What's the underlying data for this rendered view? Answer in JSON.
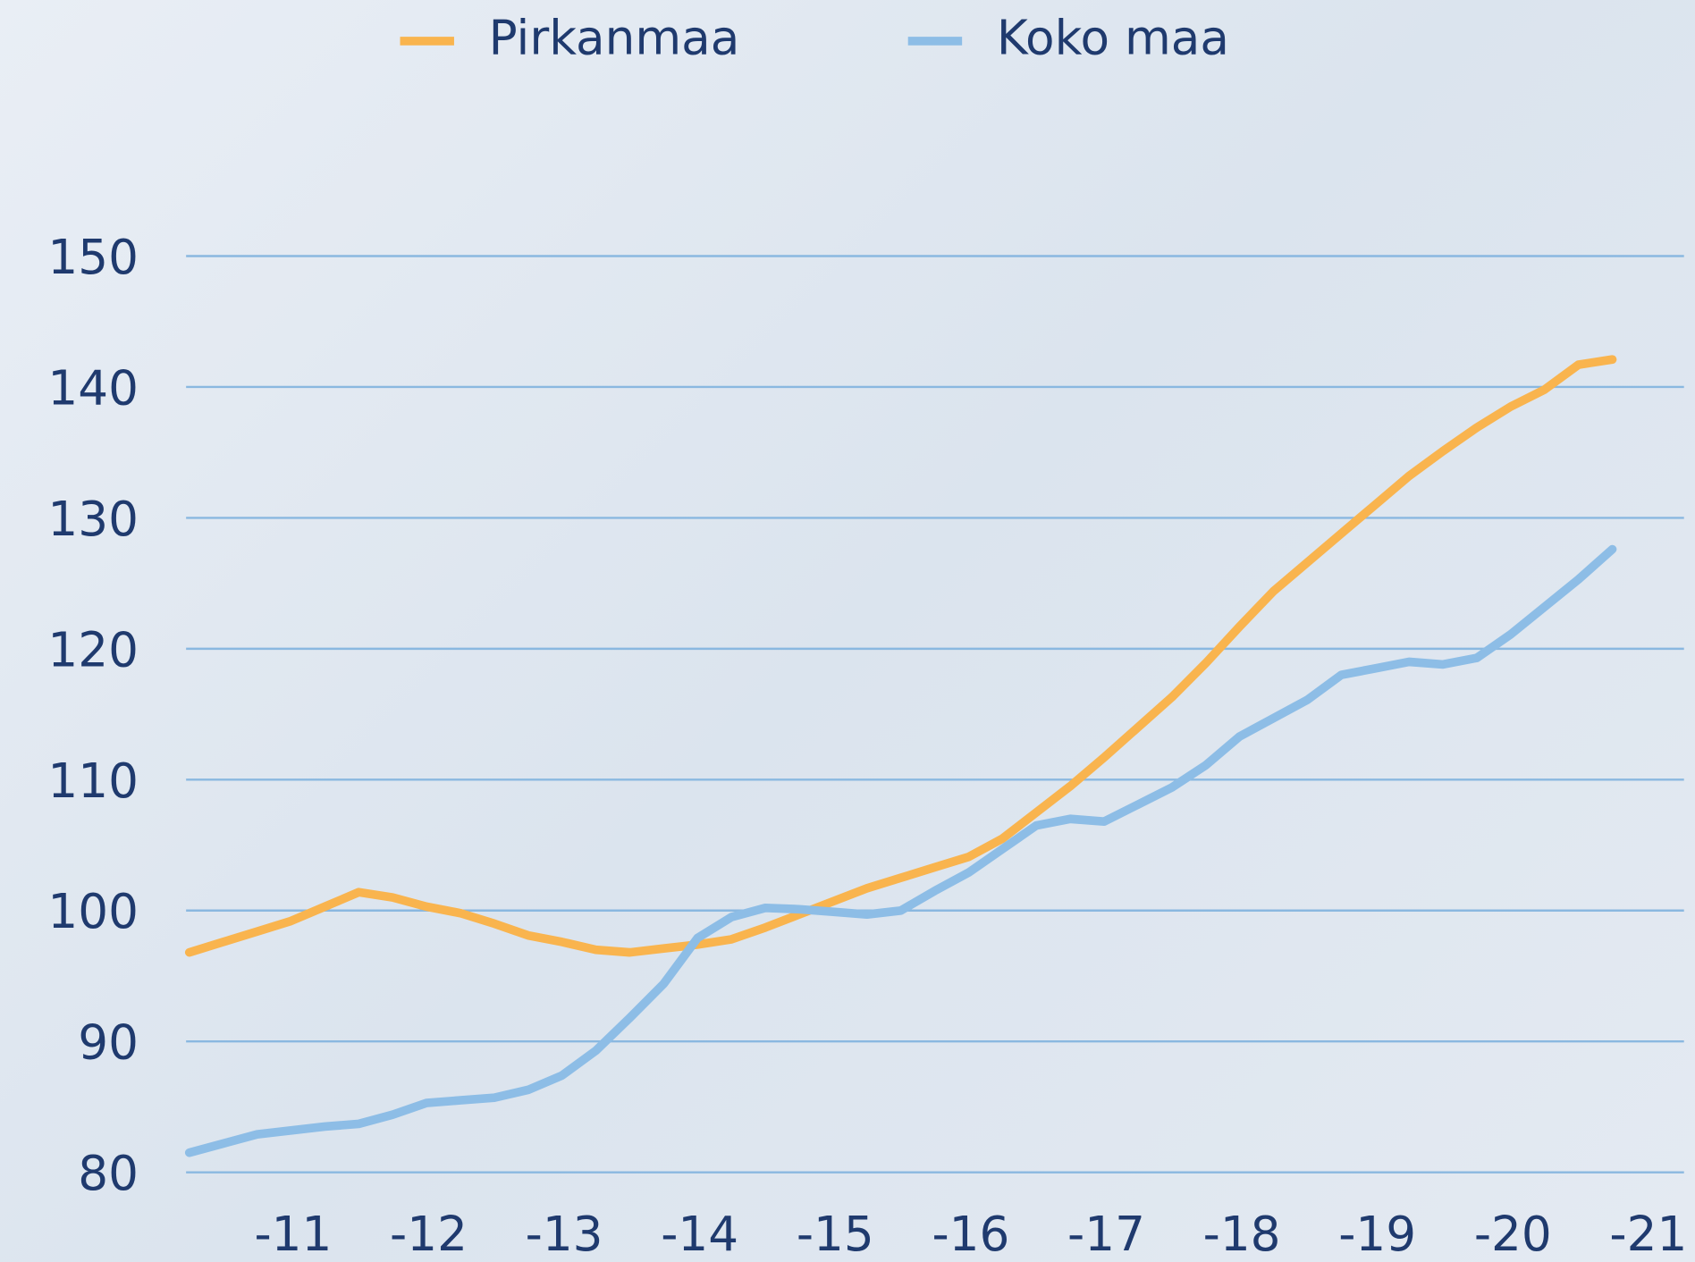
{
  "chart_data": {
    "type": "line",
    "categories": [
      null,
      null,
      null,
      "-11",
      null,
      null,
      null,
      "-12",
      null,
      null,
      null,
      "-13",
      null,
      null,
      null,
      "-14",
      null,
      null,
      null,
      "-15",
      null,
      null,
      null,
      "-16",
      null,
      null,
      null,
      "-17",
      null,
      null,
      null,
      "-18",
      null,
      null,
      null,
      "-19",
      null,
      null,
      null,
      "-20",
      null,
      null,
      null,
      "-21"
    ],
    "series": [
      {
        "name": "Pirkanmaa",
        "color": "#f9b44e",
        "values": [
          96.8,
          97.6,
          98.4,
          99.2,
          100.3,
          101.4,
          101.0,
          100.3,
          99.8,
          99.0,
          98.1,
          97.6,
          97.0,
          96.8,
          97.1,
          97.4,
          97.8,
          98.7,
          99.7,
          100.7,
          101.7,
          102.5,
          103.3,
          104.1,
          105.5,
          107.5,
          109.5,
          111.7,
          114.0,
          116.3,
          118.9,
          121.7,
          124.4,
          126.6,
          128.8,
          131.0,
          133.2,
          135.1,
          136.9,
          138.5,
          139.8,
          141.7,
          142.1,
          null
        ]
      },
      {
        "name": "Koko maa",
        "color": "#8dbde6",
        "values": [
          81.5,
          82.2,
          82.9,
          83.2,
          83.5,
          83.7,
          84.4,
          85.3,
          85.5,
          85.7,
          86.3,
          87.4,
          89.3,
          91.8,
          94.4,
          97.9,
          99.5,
          100.2,
          100.1,
          99.9,
          99.7,
          100.0,
          101.5,
          102.9,
          104.7,
          106.5,
          107.0,
          106.8,
          108.1,
          109.4,
          111.1,
          113.3,
          114.7,
          116.1,
          118.0,
          118.5,
          119.0,
          118.8,
          119.3,
          121.1,
          123.2,
          125.3,
          127.6,
          null
        ]
      }
    ],
    "ylim": [
      80,
      150
    ],
    "yticks": [
      80,
      90,
      100,
      110,
      120,
      130,
      140,
      150
    ],
    "grid": true
  }
}
